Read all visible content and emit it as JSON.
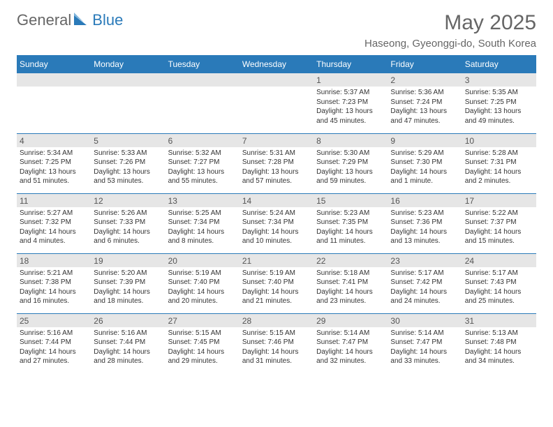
{
  "logo": {
    "left": "General",
    "right": "Blue"
  },
  "title": "May 2025",
  "subtitle": "Haseong, Gyeonggi-do, South Korea",
  "colors": {
    "header_bg": "#2a7ab9",
    "daynum_bg": "#e6e6e6",
    "text_gray": "#666666",
    "text_dark": "#333333",
    "row_border": "#2a7ab9",
    "page_bg": "#ffffff"
  },
  "weekdays": [
    "Sunday",
    "Monday",
    "Tuesday",
    "Wednesday",
    "Thursday",
    "Friday",
    "Saturday"
  ],
  "weeks": [
    [
      {
        "empty": true
      },
      {
        "empty": true
      },
      {
        "empty": true
      },
      {
        "empty": true
      },
      {
        "day": "1",
        "sunrise": "Sunrise: 5:37 AM",
        "sunset": "Sunset: 7:23 PM",
        "daylight": "Daylight: 13 hours and 45 minutes."
      },
      {
        "day": "2",
        "sunrise": "Sunrise: 5:36 AM",
        "sunset": "Sunset: 7:24 PM",
        "daylight": "Daylight: 13 hours and 47 minutes."
      },
      {
        "day": "3",
        "sunrise": "Sunrise: 5:35 AM",
        "sunset": "Sunset: 7:25 PM",
        "daylight": "Daylight: 13 hours and 49 minutes."
      }
    ],
    [
      {
        "day": "4",
        "sunrise": "Sunrise: 5:34 AM",
        "sunset": "Sunset: 7:25 PM",
        "daylight": "Daylight: 13 hours and 51 minutes."
      },
      {
        "day": "5",
        "sunrise": "Sunrise: 5:33 AM",
        "sunset": "Sunset: 7:26 PM",
        "daylight": "Daylight: 13 hours and 53 minutes."
      },
      {
        "day": "6",
        "sunrise": "Sunrise: 5:32 AM",
        "sunset": "Sunset: 7:27 PM",
        "daylight": "Daylight: 13 hours and 55 minutes."
      },
      {
        "day": "7",
        "sunrise": "Sunrise: 5:31 AM",
        "sunset": "Sunset: 7:28 PM",
        "daylight": "Daylight: 13 hours and 57 minutes."
      },
      {
        "day": "8",
        "sunrise": "Sunrise: 5:30 AM",
        "sunset": "Sunset: 7:29 PM",
        "daylight": "Daylight: 13 hours and 59 minutes."
      },
      {
        "day": "9",
        "sunrise": "Sunrise: 5:29 AM",
        "sunset": "Sunset: 7:30 PM",
        "daylight": "Daylight: 14 hours and 1 minute."
      },
      {
        "day": "10",
        "sunrise": "Sunrise: 5:28 AM",
        "sunset": "Sunset: 7:31 PM",
        "daylight": "Daylight: 14 hours and 2 minutes."
      }
    ],
    [
      {
        "day": "11",
        "sunrise": "Sunrise: 5:27 AM",
        "sunset": "Sunset: 7:32 PM",
        "daylight": "Daylight: 14 hours and 4 minutes."
      },
      {
        "day": "12",
        "sunrise": "Sunrise: 5:26 AM",
        "sunset": "Sunset: 7:33 PM",
        "daylight": "Daylight: 14 hours and 6 minutes."
      },
      {
        "day": "13",
        "sunrise": "Sunrise: 5:25 AM",
        "sunset": "Sunset: 7:34 PM",
        "daylight": "Daylight: 14 hours and 8 minutes."
      },
      {
        "day": "14",
        "sunrise": "Sunrise: 5:24 AM",
        "sunset": "Sunset: 7:34 PM",
        "daylight": "Daylight: 14 hours and 10 minutes."
      },
      {
        "day": "15",
        "sunrise": "Sunrise: 5:23 AM",
        "sunset": "Sunset: 7:35 PM",
        "daylight": "Daylight: 14 hours and 11 minutes."
      },
      {
        "day": "16",
        "sunrise": "Sunrise: 5:23 AM",
        "sunset": "Sunset: 7:36 PM",
        "daylight": "Daylight: 14 hours and 13 minutes."
      },
      {
        "day": "17",
        "sunrise": "Sunrise: 5:22 AM",
        "sunset": "Sunset: 7:37 PM",
        "daylight": "Daylight: 14 hours and 15 minutes."
      }
    ],
    [
      {
        "day": "18",
        "sunrise": "Sunrise: 5:21 AM",
        "sunset": "Sunset: 7:38 PM",
        "daylight": "Daylight: 14 hours and 16 minutes."
      },
      {
        "day": "19",
        "sunrise": "Sunrise: 5:20 AM",
        "sunset": "Sunset: 7:39 PM",
        "daylight": "Daylight: 14 hours and 18 minutes."
      },
      {
        "day": "20",
        "sunrise": "Sunrise: 5:19 AM",
        "sunset": "Sunset: 7:40 PM",
        "daylight": "Daylight: 14 hours and 20 minutes."
      },
      {
        "day": "21",
        "sunrise": "Sunrise: 5:19 AM",
        "sunset": "Sunset: 7:40 PM",
        "daylight": "Daylight: 14 hours and 21 minutes."
      },
      {
        "day": "22",
        "sunrise": "Sunrise: 5:18 AM",
        "sunset": "Sunset: 7:41 PM",
        "daylight": "Daylight: 14 hours and 23 minutes."
      },
      {
        "day": "23",
        "sunrise": "Sunrise: 5:17 AM",
        "sunset": "Sunset: 7:42 PM",
        "daylight": "Daylight: 14 hours and 24 minutes."
      },
      {
        "day": "24",
        "sunrise": "Sunrise: 5:17 AM",
        "sunset": "Sunset: 7:43 PM",
        "daylight": "Daylight: 14 hours and 25 minutes."
      }
    ],
    [
      {
        "day": "25",
        "sunrise": "Sunrise: 5:16 AM",
        "sunset": "Sunset: 7:44 PM",
        "daylight": "Daylight: 14 hours and 27 minutes."
      },
      {
        "day": "26",
        "sunrise": "Sunrise: 5:16 AM",
        "sunset": "Sunset: 7:44 PM",
        "daylight": "Daylight: 14 hours and 28 minutes."
      },
      {
        "day": "27",
        "sunrise": "Sunrise: 5:15 AM",
        "sunset": "Sunset: 7:45 PM",
        "daylight": "Daylight: 14 hours and 29 minutes."
      },
      {
        "day": "28",
        "sunrise": "Sunrise: 5:15 AM",
        "sunset": "Sunset: 7:46 PM",
        "daylight": "Daylight: 14 hours and 31 minutes."
      },
      {
        "day": "29",
        "sunrise": "Sunrise: 5:14 AM",
        "sunset": "Sunset: 7:47 PM",
        "daylight": "Daylight: 14 hours and 32 minutes."
      },
      {
        "day": "30",
        "sunrise": "Sunrise: 5:14 AM",
        "sunset": "Sunset: 7:47 PM",
        "daylight": "Daylight: 14 hours and 33 minutes."
      },
      {
        "day": "31",
        "sunrise": "Sunrise: 5:13 AM",
        "sunset": "Sunset: 7:48 PM",
        "daylight": "Daylight: 14 hours and 34 minutes."
      }
    ]
  ]
}
